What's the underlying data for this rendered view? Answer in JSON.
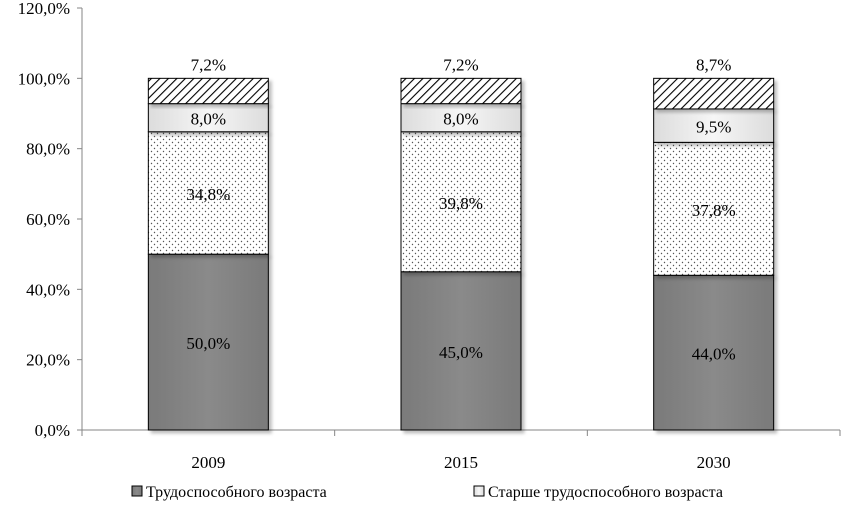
{
  "chart_data": {
    "type": "bar",
    "stacked": true,
    "categories": [
      "2009",
      "2015",
      "2030"
    ],
    "series": [
      {
        "name": "Трудоспособного возраста",
        "values": [
          50.0,
          45.0,
          44.0
        ],
        "labels": [
          "50,0%",
          "45,0%",
          "44,0%"
        ],
        "fill": "dark-gray",
        "color": "#808080"
      },
      {
        "name": "",
        "values": [
          34.8,
          39.8,
          37.8
        ],
        "labels": [
          "34,8%",
          "39,8%",
          "37,8%"
        ],
        "fill": "dotted",
        "color": "#ffffff"
      },
      {
        "name": "Старше трудоспособного возраста",
        "values": [
          8.0,
          8.0,
          9.5
        ],
        "labels": [
          "8,0%",
          "8,0%",
          "9,5%"
        ],
        "fill": "light-gray",
        "color": "#ececec"
      },
      {
        "name": "",
        "values": [
          7.2,
          7.2,
          8.7
        ],
        "labels": [
          "7,2%",
          "7,2%",
          "8,7%"
        ],
        "fill": "hatched",
        "color": "#ffffff"
      }
    ],
    "yticks": [
      "0,0%",
      "20,0%",
      "40,0%",
      "60,0%",
      "80,0%",
      "100,0%",
      "120,0%"
    ],
    "ylim": [
      0,
      120
    ],
    "grid": false,
    "legend_placement": "bottom"
  }
}
